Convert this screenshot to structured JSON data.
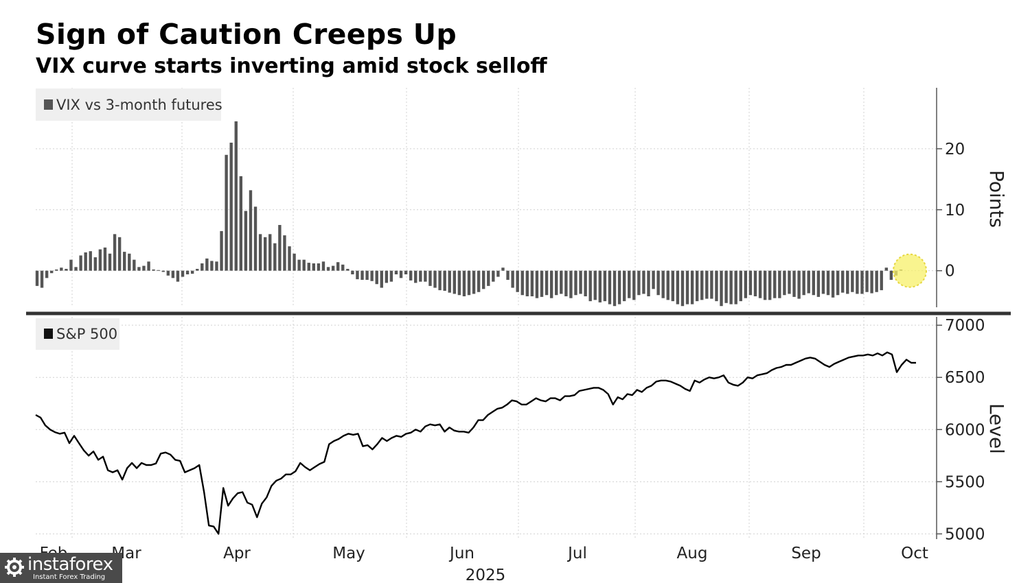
{
  "title": "Sign of Caution Creeps Up",
  "subtitle": "VIX curve starts inverting amid stock selloff",
  "watermark": {
    "brand": "instaforex",
    "tagline": "Instant Forex Trading"
  },
  "colors": {
    "bars": "#555555",
    "line": "#000000",
    "grid": "#d0d0d0",
    "highlight": "#f7f06a",
    "divider": "#333333"
  },
  "chart_data": [
    {
      "type": "bar",
      "legend": "VIX vs 3-month futures",
      "ylabel": "Points",
      "ylim": [
        -6,
        30
      ],
      "yticks": [
        0,
        10,
        20
      ],
      "values": [
        -2.5,
        -2.8,
        -1.2,
        -0.4,
        0.2,
        0.5,
        0.3,
        1.8,
        0.6,
        2.5,
        3.0,
        3.2,
        2.2,
        3.5,
        3.8,
        2.8,
        6.0,
        5.5,
        3.1,
        2.8,
        1.8,
        0.6,
        0.8,
        1.5,
        0.2,
        0.1,
        -0.2,
        -0.8,
        -1.2,
        -1.8,
        -1.0,
        -0.6,
        -0.5,
        0.3,
        1.2,
        2.0,
        1.6,
        1.5,
        6.5,
        19.0,
        21.0,
        24.5,
        15.5,
        9.8,
        13.2,
        10.5,
        6.0,
        5.5,
        6.0,
        4.5,
        7.5,
        5.8,
        4.0,
        2.8,
        1.8,
        1.8,
        1.3,
        1.2,
        1.2,
        1.5,
        0.6,
        0.8,
        1.4,
        1.0,
        0.3,
        -0.6,
        -1.4,
        -1.5,
        -1.5,
        -1.7,
        -2.2,
        -2.8,
        -2.0,
        -1.8,
        -0.6,
        -1.2,
        -0.6,
        -1.6,
        -2.0,
        -1.8,
        -1.8,
        -2.5,
        -2.8,
        -3.2,
        -3.3,
        -3.6,
        -3.8,
        -4.0,
        -4.2,
        -4.0,
        -3.8,
        -3.5,
        -3.0,
        -2.5,
        -1.8,
        -1.0,
        0.5,
        -1.5,
        -2.8,
        -3.5,
        -4.0,
        -4.2,
        -4.2,
        -4.5,
        -4.3,
        -4.0,
        -4.5,
        -4.0,
        -3.8,
        -4.2,
        -4.5,
        -4.0,
        -3.8,
        -4.2,
        -5.0,
        -4.8,
        -5.2,
        -5.0,
        -5.5,
        -5.8,
        -5.5,
        -5.0,
        -4.5,
        -4.8,
        -4.0,
        -3.8,
        -4.2,
        -3.0,
        -4.0,
        -4.5,
        -4.8,
        -5.0,
        -5.5,
        -5.8,
        -5.5,
        -5.5,
        -5.0,
        -4.8,
        -4.6,
        -4.6,
        -5.0,
        -5.8,
        -5.3,
        -5.5,
        -5.5,
        -5.0,
        -4.5,
        -4.0,
        -4.2,
        -4.5,
        -4.8,
        -4.8,
        -4.5,
        -4.5,
        -4.0,
        -3.8,
        -4.3,
        -4.6,
        -4.0,
        -3.7,
        -4.0,
        -4.3,
        -3.8,
        -4.0,
        -4.4,
        -4.0,
        -3.6,
        -3.8,
        -3.5,
        -3.8,
        -3.8,
        -3.5,
        -3.7,
        -3.5,
        -3.2,
        0.5,
        -1.5,
        -0.8,
        0.2
      ]
    },
    {
      "type": "line",
      "legend": "S&P 500",
      "ylabel": "Level",
      "ylim": [
        4950,
        7080
      ],
      "yticks": [
        5000,
        5500,
        6000,
        6500,
        7000
      ],
      "values": [
        6140,
        6115,
        6040,
        6000,
        5975,
        5960,
        5970,
        5870,
        5940,
        5870,
        5800,
        5750,
        5790,
        5710,
        5740,
        5610,
        5590,
        5610,
        5520,
        5630,
        5680,
        5630,
        5680,
        5660,
        5660,
        5675,
        5770,
        5780,
        5760,
        5710,
        5700,
        5590,
        5610,
        5630,
        5660,
        5400,
        5080,
        5070,
        5000,
        5440,
        5270,
        5340,
        5390,
        5400,
        5300,
        5280,
        5160,
        5290,
        5350,
        5460,
        5510,
        5530,
        5570,
        5570,
        5600,
        5680,
        5640,
        5610,
        5640,
        5670,
        5690,
        5860,
        5890,
        5910,
        5940,
        5960,
        5950,
        5960,
        5840,
        5850,
        5810,
        5860,
        5920,
        5890,
        5920,
        5940,
        5930,
        5960,
        5970,
        6000,
        5980,
        6030,
        6050,
        6040,
        6050,
        5980,
        6020,
        5990,
        5980,
        5980,
        5970,
        6020,
        6090,
        6090,
        6140,
        6170,
        6200,
        6210,
        6240,
        6280,
        6270,
        6240,
        6240,
        6270,
        6300,
        6280,
        6270,
        6300,
        6300,
        6280,
        6320,
        6320,
        6330,
        6370,
        6380,
        6390,
        6400,
        6400,
        6380,
        6340,
        6240,
        6310,
        6290,
        6340,
        6330,
        6380,
        6360,
        6400,
        6420,
        6460,
        6470,
        6470,
        6460,
        6440,
        6420,
        6390,
        6370,
        6470,
        6450,
        6480,
        6500,
        6490,
        6500,
        6520,
        6450,
        6430,
        6420,
        6450,
        6500,
        6490,
        6520,
        6530,
        6540,
        6570,
        6590,
        6600,
        6620,
        6620,
        6640,
        6660,
        6680,
        6690,
        6680,
        6650,
        6620,
        6600,
        6630,
        6650,
        6670,
        6690,
        6700,
        6710,
        6710,
        6720,
        6710,
        6730,
        6710,
        6740,
        6720,
        6550,
        6620,
        6670,
        6640,
        6640
      ]
    }
  ],
  "x_axis": {
    "months": [
      "Feb",
      "Mar",
      "Apr",
      "May",
      "Jun",
      "Jul",
      "Aug",
      "Sep",
      "Oct"
    ],
    "year": "2025"
  }
}
